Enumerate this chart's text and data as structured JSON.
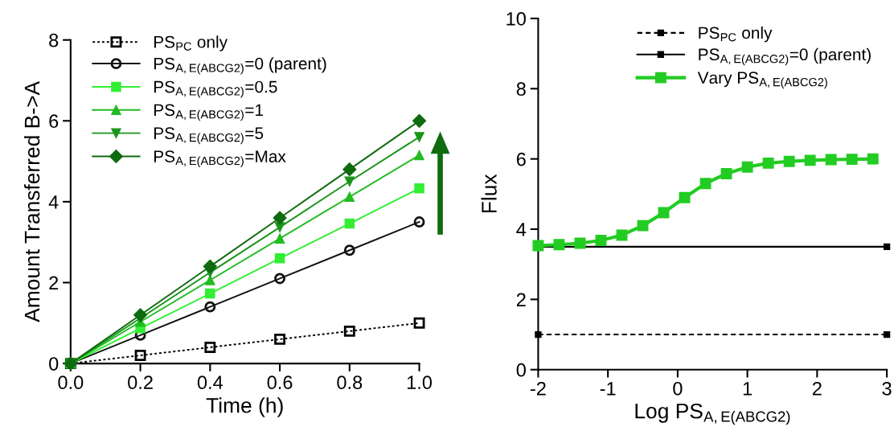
{
  "chart_data": [
    {
      "type": "line",
      "xlabel": "Time (h)",
      "ylabel": "Amount Transferred B->A",
      "x": [
        0,
        0.2,
        0.4,
        0.6,
        0.8,
        1.0
      ],
      "xlim": [
        0,
        1.0
      ],
      "xticks": [
        {
          "value": 0,
          "label": "0.0"
        },
        0.2,
        0.4,
        0.6,
        0.8,
        {
          "value": 1.0,
          "label": "1.0"
        }
      ],
      "ylim": [
        0,
        8
      ],
      "yticks": [
        0,
        2,
        4,
        6,
        8
      ],
      "grid": false,
      "legend": "top left",
      "series": [
        {
          "name": "PS$_{PC}$ only",
          "color": "#000000",
          "marker": "square",
          "line_style": "dotted",
          "values": [
            0,
            0.2,
            0.4,
            0.6,
            0.8,
            1.0
          ]
        },
        {
          "name": "PS$_{A,E(ABCG2)}$=0 (parent)",
          "color": "#111111",
          "marker": "circle",
          "line_style": "solid",
          "values": [
            0,
            0.7,
            1.4,
            2.1,
            2.8,
            3.5
          ]
        },
        {
          "name": "PS$_{A,E(ABCG2)}$=0.5",
          "color": "#33ee33",
          "marker": "square",
          "line_style": "solid",
          "values": [
            0,
            0.87,
            1.73,
            2.6,
            3.46,
            4.33
          ]
        },
        {
          "name": "PS$_{A,E(ABCG2)}$=1",
          "color": "#22bb22",
          "marker": "triangle",
          "line_style": "solid",
          "values": [
            0,
            1.03,
            2.06,
            3.09,
            4.12,
            5.15
          ]
        },
        {
          "name": "PS$_{A,E(ABCG2)}$=5",
          "color": "#1a951a",
          "marker": "triangle_down",
          "line_style": "solid",
          "values": [
            0,
            1.12,
            2.25,
            3.37,
            4.5,
            5.6
          ]
        },
        {
          "name": "PS$_{A,E(ABCG2)}$=Max",
          "color": "#0f6b0f",
          "marker": "diamond",
          "line_style": "solid",
          "values": [
            0,
            1.2,
            2.4,
            3.6,
            4.8,
            6.0
          ]
        }
      ]
    },
    {
      "type": "line",
      "xlabel": "Log PS$_{A,E(ABCG2)}$",
      "ylabel": "Flux",
      "xlim": [
        -2,
        3
      ],
      "xticks": [
        {
          "value": -2,
          "label": "-2"
        },
        {
          "value": -1,
          "label": "-1"
        },
        0,
        1,
        2,
        3
      ],
      "ylim": [
        0,
        10
      ],
      "yticks": [
        0,
        2,
        4,
        6,
        8,
        10
      ],
      "grid": false,
      "legend": "top right",
      "series": [
        {
          "name": "PS$_{PC}$ only",
          "color": "#000000",
          "marker": "square",
          "line_style": "dashed",
          "x": [
            -2,
            3
          ],
          "values": [
            1,
            1
          ]
        },
        {
          "name": "PS$_{A,E(ABCG2)}$=0 (parent)",
          "color": "#000000",
          "marker": "square",
          "line_style": "solid",
          "x": [
            -2,
            3
          ],
          "values": [
            3.5,
            3.5
          ]
        },
        {
          "name": "Vary PS$_{A,E(ABCG2)}$",
          "color": "#22cc22",
          "marker": "square",
          "line_style": "solid",
          "x": [
            -2,
            -1.7,
            -1.4,
            -1.1,
            -0.8,
            -0.5,
            -0.2,
            0.1,
            0.4,
            0.7,
            1.0,
            1.3,
            1.6,
            1.9,
            2.2,
            2.5,
            2.8
          ],
          "values": [
            3.53,
            3.56,
            3.6,
            3.68,
            3.83,
            4.1,
            4.47,
            4.9,
            5.3,
            5.58,
            5.77,
            5.88,
            5.93,
            5.96,
            5.98,
            5.99,
            6.0
          ]
        }
      ]
    }
  ]
}
